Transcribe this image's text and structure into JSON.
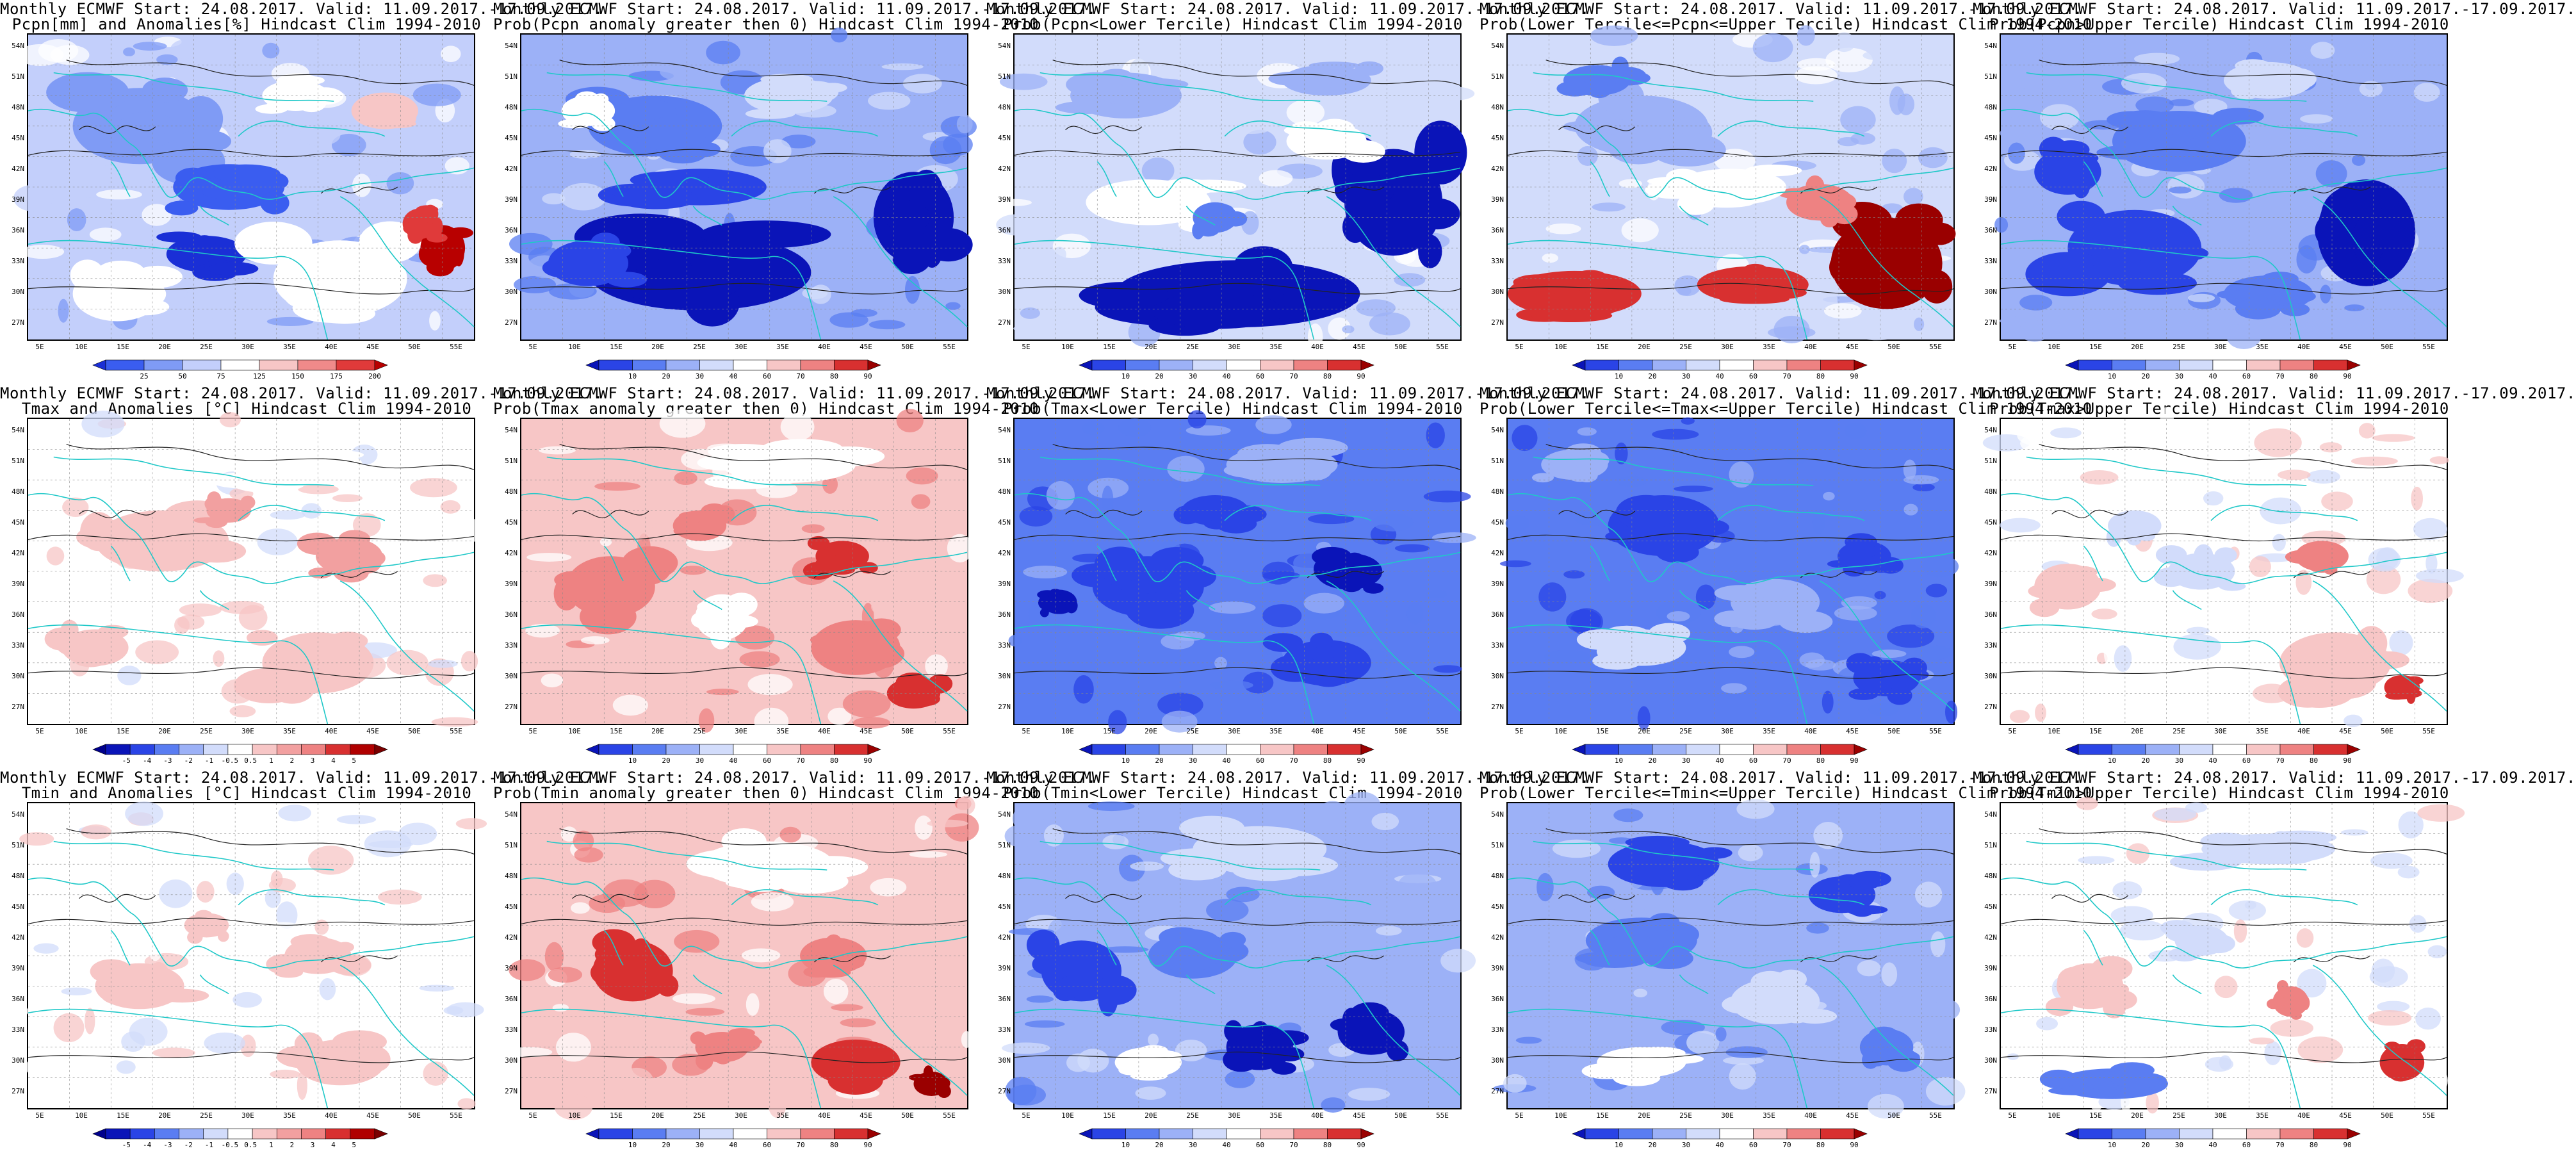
{
  "map_info": {
    "lat_ticks": [
      "54N",
      "51N",
      "48N",
      "45N",
      "42N",
      "39N",
      "36N",
      "33N",
      "30N",
      "27N"
    ],
    "lon_ticks": [
      "5E",
      "10E",
      "15E",
      "20E",
      "25E",
      "30E",
      "35E",
      "40E",
      "45E",
      "50E",
      "55E"
    ]
  },
  "colorbars": {
    "precip_anom": {
      "ticks": [
        "25",
        "50",
        "75",
        "125",
        "150",
        "175",
        "200"
      ],
      "colors": [
        "#1a2fd6",
        "#3a5df0",
        "#7f9bf5",
        "#c3cffb",
        "#ffffff",
        "#f7c6c6",
        "#f08a8a",
        "#e03a3a",
        "#b80000"
      ]
    },
    "prob": {
      "ticks": [
        "10",
        "20",
        "30",
        "40",
        "60",
        "70",
        "80",
        "90"
      ],
      "colors": [
        "#0a14b8",
        "#2a44e6",
        "#5a7df2",
        "#9cb1f7",
        "#d2dcfb",
        "#ffffff",
        "#f7c6c6",
        "#ee8282",
        "#d83030",
        "#9a0000"
      ]
    },
    "temp_anom": {
      "ticks": [
        "-5",
        "-4",
        "-3",
        "-2",
        "-1",
        "-0.5",
        "0.5",
        "1",
        "2",
        "3",
        "4",
        "5"
      ],
      "colors": [
        "#00008c",
        "#0a14b8",
        "#2a44e6",
        "#5a7df2",
        "#9cb1f7",
        "#d2dcfb",
        "#ffffff",
        "#f7c6c6",
        "#f2a0a0",
        "#ee8282",
        "#d83030",
        "#b00000",
        "#7a0000"
      ]
    }
  },
  "panels": [
    {
      "title1": "Monthly ECMWF Start: 24.08.2017. Valid: 11.09.2017.-17.09.2017.",
      "title2": "Pcpn[mm] and Anomalies[%] Hindcast Clim 1994-2010",
      "colorbar": "precip_anom",
      "base": "#c3cffb",
      "patches": [
        [
          "#7f9bf5",
          0.25,
          0.3,
          0.3,
          0.25
        ],
        [
          "#3a5df0",
          0.45,
          0.5,
          0.25,
          0.15
        ],
        [
          "#1a2fd6",
          0.4,
          0.72,
          0.18,
          0.12
        ],
        [
          "#ffffff",
          0.7,
          0.8,
          0.3,
          0.25
        ],
        [
          "#ffffff",
          0.2,
          0.85,
          0.2,
          0.18
        ],
        [
          "#b80000",
          0.93,
          0.7,
          0.1,
          0.15
        ],
        [
          "#e03a3a",
          0.88,
          0.62,
          0.08,
          0.1
        ],
        [
          "#f7c6c6",
          0.8,
          0.25,
          0.15,
          0.12
        ],
        [
          "#ffffff",
          0.6,
          0.2,
          0.15,
          0.1
        ]
      ]
    },
    {
      "title1": "Monthly ECMWF Start: 24.08.2017. Valid: 11.09.2017.-17.09.2017.",
      "title2": "Prob(Pcpn anomaly greater then 0) Hindcast Clim 1994-2010",
      "colorbar": "prob",
      "base": "#9cb1f7",
      "patches": [
        [
          "#0a14b8",
          0.4,
          0.78,
          0.5,
          0.25
        ],
        [
          "#0a14b8",
          0.88,
          0.6,
          0.18,
          0.3
        ],
        [
          "#2a44e6",
          0.4,
          0.5,
          0.3,
          0.12
        ],
        [
          "#5a7df2",
          0.3,
          0.3,
          0.3,
          0.2
        ],
        [
          "#d2dcfb",
          0.6,
          0.2,
          0.2,
          0.12
        ],
        [
          "#ffffff",
          0.15,
          0.25,
          0.12,
          0.1
        ],
        [
          "#2a44e6",
          0.15,
          0.75,
          0.18,
          0.15
        ]
      ]
    },
    {
      "title1": "Monthly ECMWF Start: 24.08.2017. Valid: 11.09.2017.-17.09.2017.",
      "title2": "Prob(Pcpn<Lower Tercile) Hindcast Clim 1994-2010",
      "colorbar": "prob",
      "base": "#d2dcfb",
      "patches": [
        [
          "#0a14b8",
          0.5,
          0.85,
          0.55,
          0.22
        ],
        [
          "#0a14b8",
          0.85,
          0.55,
          0.22,
          0.35
        ],
        [
          "#ffffff",
          0.3,
          0.55,
          0.28,
          0.15
        ],
        [
          "#ffffff",
          0.7,
          0.35,
          0.18,
          0.12
        ],
        [
          "#9cb1f7",
          0.25,
          0.2,
          0.25,
          0.15
        ],
        [
          "#5a7df2",
          0.45,
          0.6,
          0.1,
          0.1
        ],
        [
          "#9cb1f7",
          0.7,
          0.15,
          0.2,
          0.1
        ]
      ]
    },
    {
      "title1": "Monthly ECMWF Start: 24.08.2017. Valid: 11.09.2017.-17.09.2017.",
      "title2": "Prob(Lower Tercile<=Pcpn<=Upper Tercile) Hindcast Clim 1994-2010",
      "colorbar": "prob",
      "base": "#d2dcfb",
      "patches": [
        [
          "#9a0000",
          0.85,
          0.75,
          0.25,
          0.3
        ],
        [
          "#d83030",
          0.15,
          0.85,
          0.3,
          0.15
        ],
        [
          "#d83030",
          0.55,
          0.82,
          0.25,
          0.12
        ],
        [
          "#ee8282",
          0.7,
          0.55,
          0.15,
          0.12
        ],
        [
          "#9cb1f7",
          0.3,
          0.3,
          0.3,
          0.2
        ],
        [
          "#ffffff",
          0.5,
          0.5,
          0.25,
          0.12
        ],
        [
          "#5a7df2",
          0.2,
          0.15,
          0.15,
          0.1
        ]
      ]
    },
    {
      "title1": "Monthly ECMWF Start: 24.08.2017. Valid: 11.09.2017.-17.09.2017.",
      "title2": "Prob(Pcpn>Upper Tercile) Hindcast Clim 1994-2010",
      "colorbar": "prob",
      "base": "#9cb1f7",
      "patches": [
        [
          "#0a14b8",
          0.82,
          0.65,
          0.22,
          0.35
        ],
        [
          "#2a44e6",
          0.3,
          0.7,
          0.3,
          0.25
        ],
        [
          "#5a7df2",
          0.4,
          0.35,
          0.3,
          0.2
        ],
        [
          "#d2dcfb",
          0.6,
          0.15,
          0.2,
          0.12
        ],
        [
          "#2a44e6",
          0.15,
          0.45,
          0.15,
          0.15
        ],
        [
          "#5a7df2",
          0.6,
          0.85,
          0.2,
          0.12
        ]
      ]
    },
    {
      "title1": "Monthly ECMWF Start: 24.08.2017. Valid: 11.09.2017.-17.09.2017.",
      "title2": "Tmax and Anomalies [°C] Hindcast Clim 1994-2010",
      "colorbar": "temp_anom",
      "base": "#ffffff",
      "patches": [
        [
          "#f7c6c6",
          0.3,
          0.4,
          0.3,
          0.2
        ],
        [
          "#f2a0a0",
          0.72,
          0.45,
          0.15,
          0.12
        ],
        [
          "#f7c6c6",
          0.65,
          0.8,
          0.25,
          0.2
        ],
        [
          "#f7c6c6",
          0.15,
          0.75,
          0.15,
          0.12
        ],
        [
          "#f2a0a0",
          0.45,
          0.3,
          0.1,
          0.08
        ],
        [
          "#ffffff",
          0.6,
          0.15,
          0.3,
          0.12
        ]
      ]
    },
    {
      "title1": "Monthly ECMWF Start: 24.08.2017. Valid: 11.09.2017.-17.09.2017.",
      "title2": "Prob(Tmax anomaly greater then 0) Hindcast Clim 1994-2010",
      "colorbar": "prob",
      "base": "#f7c6c6",
      "patches": [
        [
          "#ee8282",
          0.2,
          0.55,
          0.2,
          0.2
        ],
        [
          "#d83030",
          0.72,
          0.45,
          0.12,
          0.1
        ],
        [
          "#d83030",
          0.88,
          0.9,
          0.12,
          0.1
        ],
        [
          "#ee8282",
          0.75,
          0.75,
          0.2,
          0.18
        ],
        [
          "#ffffff",
          0.6,
          0.15,
          0.3,
          0.12
        ],
        [
          "#ffffff",
          0.45,
          0.65,
          0.12,
          0.15
        ],
        [
          "#ee8282",
          0.4,
          0.35,
          0.12,
          0.1
        ]
      ]
    },
    {
      "title1": "Monthly ECMWF Start: 24.08.2017. Valid: 11.09.2017.-17.09.2017.",
      "title2": "Prob(Tmax<Lower Tercile) Hindcast Clim 1994-2010",
      "colorbar": "prob",
      "base": "#5a7df2",
      "patches": [
        [
          "#2a44e6",
          0.3,
          0.55,
          0.25,
          0.2
        ],
        [
          "#0a14b8",
          0.75,
          0.5,
          0.15,
          0.12
        ],
        [
          "#2a44e6",
          0.7,
          0.8,
          0.2,
          0.15
        ],
        [
          "#9cb1f7",
          0.6,
          0.15,
          0.25,
          0.12
        ],
        [
          "#0a14b8",
          0.1,
          0.6,
          0.08,
          0.08
        ],
        [
          "#2a44e6",
          0.45,
          0.3,
          0.15,
          0.1
        ]
      ]
    },
    {
      "title1": "Monthly ECMWF Start: 24.08.2017. Valid: 11.09.2017.-17.09.2017.",
      "title2": "Prob(Lower Tercile<=Tmax<=Upper Tercile) Hindcast Clim 1994-2010",
      "colorbar": "prob",
      "base": "#5a7df2",
      "patches": [
        [
          "#2a44e6",
          0.35,
          0.35,
          0.25,
          0.2
        ],
        [
          "#9cb1f7",
          0.6,
          0.6,
          0.2,
          0.15
        ],
        [
          "#d2dcfb",
          0.3,
          0.75,
          0.2,
          0.12
        ],
        [
          "#2a44e6",
          0.8,
          0.45,
          0.12,
          0.1
        ],
        [
          "#9cb1f7",
          0.15,
          0.15,
          0.15,
          0.1
        ],
        [
          "#2a44e6",
          0.85,
          0.85,
          0.15,
          0.12
        ]
      ]
    },
    {
      "title1": "Monthly ECMWF Start: 24.08.2017. Valid: 11.09.2017.-17.09.2017.",
      "title2": "Prob(Tmax>Upper Tercile) Hindcast Clim 1994-2010",
      "colorbar": "prob",
      "base": "#ffffff",
      "patches": [
        [
          "#f7c6c6",
          0.15,
          0.55,
          0.15,
          0.15
        ],
        [
          "#ee8282",
          0.72,
          0.45,
          0.12,
          0.1
        ],
        [
          "#f7c6c6",
          0.75,
          0.8,
          0.25,
          0.2
        ],
        [
          "#d83030",
          0.9,
          0.88,
          0.08,
          0.08
        ],
        [
          "#d2dcfb",
          0.45,
          0.5,
          0.15,
          0.12
        ],
        [
          "#d2dcfb",
          0.3,
          0.35,
          0.12,
          0.1
        ]
      ]
    },
    {
      "title1": "Monthly ECMWF Start: 24.08.2017. Valid: 11.09.2017.-17.09.2017.",
      "title2": "Tmin and Anomalies [°C] Hindcast Clim 1994-2010",
      "colorbar": "temp_anom",
      "base": "#ffffff",
      "patches": [
        [
          "#f7c6c6",
          0.25,
          0.6,
          0.2,
          0.15
        ],
        [
          "#f7c6c6",
          0.65,
          0.5,
          0.15,
          0.12
        ],
        [
          "#f7c6c6",
          0.7,
          0.85,
          0.2,
          0.15
        ],
        [
          "#f7c6c6",
          0.4,
          0.4,
          0.1,
          0.08
        ]
      ]
    },
    {
      "title1": "Monthly ECMWF Start: 24.08.2017. Valid: 11.09.2017.-17.09.2017.",
      "title2": "Prob(Tmin anomaly greater then 0) Hindcast Clim 1994-2010",
      "colorbar": "prob",
      "base": "#f7c6c6",
      "patches": [
        [
          "#d83030",
          0.25,
          0.55,
          0.18,
          0.2
        ],
        [
          "#ee8282",
          0.7,
          0.5,
          0.15,
          0.12
        ],
        [
          "#d83030",
          0.75,
          0.85,
          0.2,
          0.15
        ],
        [
          "#9a0000",
          0.92,
          0.92,
          0.08,
          0.08
        ],
        [
          "#ffffff",
          0.55,
          0.2,
          0.3,
          0.15
        ],
        [
          "#ee8282",
          0.45,
          0.8,
          0.12,
          0.1
        ]
      ]
    },
    {
      "title1": "Monthly ECMWF Start: 24.08.2017. Valid: 11.09.2017.-17.09.2017.",
      "title2": "Prob(Tmin<Lower Tercile) Hindcast Clim 1994-2010",
      "colorbar": "prob",
      "base": "#9cb1f7",
      "patches": [
        [
          "#2a44e6",
          0.15,
          0.55,
          0.18,
          0.2
        ],
        [
          "#0a14b8",
          0.55,
          0.8,
          0.15,
          0.15
        ],
        [
          "#0a14b8",
          0.8,
          0.75,
          0.15,
          0.15
        ],
        [
          "#5a7df2",
          0.4,
          0.5,
          0.2,
          0.15
        ],
        [
          "#d2dcfb",
          0.55,
          0.15,
          0.3,
          0.15
        ],
        [
          "#ffffff",
          0.3,
          0.85,
          0.15,
          0.1
        ]
      ]
    },
    {
      "title1": "Monthly ECMWF Start: 24.08.2017. Valid: 11.09.2017.-17.09.2017.",
      "title2": "Prob(Lower Tercile<=Tmin<=Upper Tercile) Hindcast Clim 1994-2010",
      "colorbar": "prob",
      "base": "#9cb1f7",
      "patches": [
        [
          "#2a44e6",
          0.35,
          0.2,
          0.25,
          0.15
        ],
        [
          "#5a7df2",
          0.3,
          0.45,
          0.25,
          0.15
        ],
        [
          "#d2dcfb",
          0.6,
          0.65,
          0.2,
          0.15
        ],
        [
          "#ffffff",
          0.3,
          0.85,
          0.2,
          0.1
        ],
        [
          "#2a44e6",
          0.75,
          0.3,
          0.15,
          0.12
        ],
        [
          "#5a7df2",
          0.85,
          0.8,
          0.12,
          0.12
        ]
      ]
    },
    {
      "title1": "Monthly ECMWF Start: 24.08.2017. Valid: 11.09.2017.-17.09.2017.",
      "title2": "Prob(Tmin>Upper Tercile) Hindcast Clim 1994-2010",
      "colorbar": "prob",
      "base": "#ffffff",
      "patches": [
        [
          "#f7c6c6",
          0.2,
          0.6,
          0.15,
          0.15
        ],
        [
          "#ee8282",
          0.65,
          0.65,
          0.08,
          0.1
        ],
        [
          "#d83030",
          0.9,
          0.85,
          0.1,
          0.12
        ],
        [
          "#5a7df2",
          0.25,
          0.92,
          0.25,
          0.1
        ],
        [
          "#d2dcfb",
          0.6,
          0.15,
          0.3,
          0.1
        ],
        [
          "#d2dcfb",
          0.45,
          0.45,
          0.12,
          0.1
        ]
      ]
    }
  ]
}
